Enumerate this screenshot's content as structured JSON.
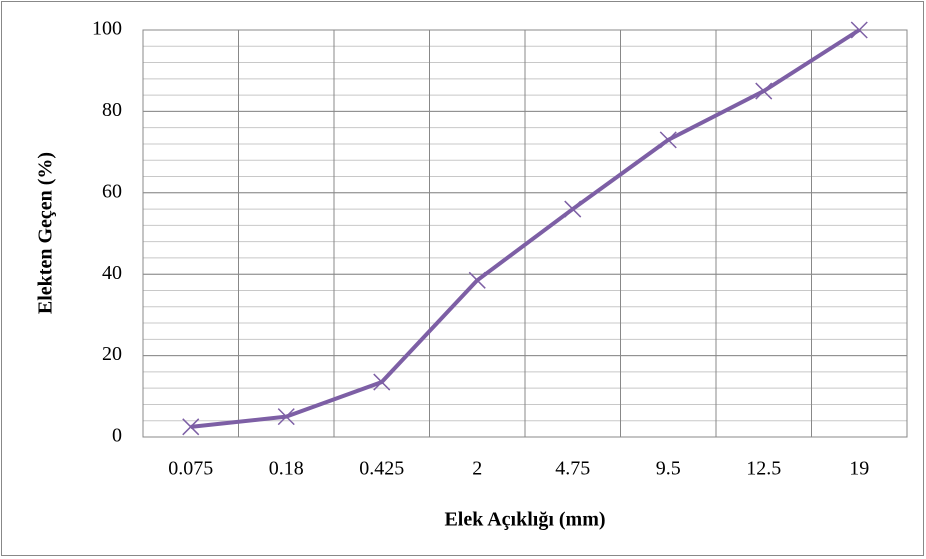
{
  "chart_data": {
    "type": "line",
    "x_label": "Elek Açıklığı (mm)",
    "y_label": "Elekten Geçen (%)",
    "categories": [
      "0.075",
      "0.18",
      "0.425",
      "2",
      "4.75",
      "9.5",
      "12.5",
      "19"
    ],
    "series": [
      {
        "name": "Elekten Geçen",
        "color": "#7d5fa5",
        "marker": "x",
        "values": [
          2.5,
          5,
          13.5,
          38.5,
          56,
          73,
          85,
          100
        ]
      }
    ],
    "ylim": [
      0,
      100
    ],
    "yticks": [
      0,
      20,
      40,
      60,
      80,
      100
    ],
    "grid": true,
    "minor_grid_step": 4,
    "legend": false
  }
}
